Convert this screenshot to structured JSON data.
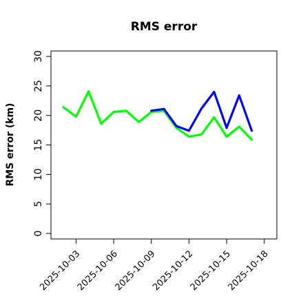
{
  "chart_data": {
    "type": "line",
    "title": "RMS error",
    "xlabel": "",
    "ylabel": "RMS error (km)",
    "ylim": [
      0,
      30
    ],
    "yticks": [
      0,
      5,
      10,
      15,
      20,
      25,
      30
    ],
    "xlim": [
      "2025-10-01",
      "2025-10-19"
    ],
    "xticks": [
      {
        "label": "2025-10-03",
        "color": "#000000"
      },
      {
        "label": "2025-10-06",
        "color": "#000000"
      },
      {
        "label": "2025-10-09",
        "color": "#1a8a1a"
      },
      {
        "label": "2025-10-12",
        "color": "#000000"
      },
      {
        "label": "2025-10-15",
        "color": "#000000"
      },
      {
        "label": "2025-10-18",
        "color": "#000000"
      }
    ],
    "grid": false,
    "series": [
      {
        "color": "#00ff00",
        "x": [
          "2025-10-02",
          "2025-10-03",
          "2025-10-04",
          "2025-10-05",
          "2025-10-06",
          "2025-10-07",
          "2025-10-08",
          "2025-10-09",
          "2025-10-10",
          "2025-10-11",
          "2025-10-12",
          "2025-10-13",
          "2025-10-14",
          "2025-10-15",
          "2025-10-16",
          "2025-10-17"
        ],
        "values": [
          21.4,
          19.8,
          24.1,
          18.6,
          20.6,
          20.8,
          18.9,
          20.6,
          20.8,
          17.9,
          16.4,
          16.8,
          19.7,
          16.4,
          18.1,
          15.9
        ]
      },
      {
        "color": "#0000ff",
        "x": [
          "2025-10-09",
          "2025-10-10",
          "2025-10-11",
          "2025-10-12",
          "2025-10-13",
          "2025-10-14",
          "2025-10-15",
          "2025-10-16",
          "2025-10-17"
        ],
        "values": [
          20.8,
          21.1,
          18.2,
          17.4,
          21.2,
          24.0,
          17.9,
          23.4,
          17.4
        ]
      }
    ]
  }
}
